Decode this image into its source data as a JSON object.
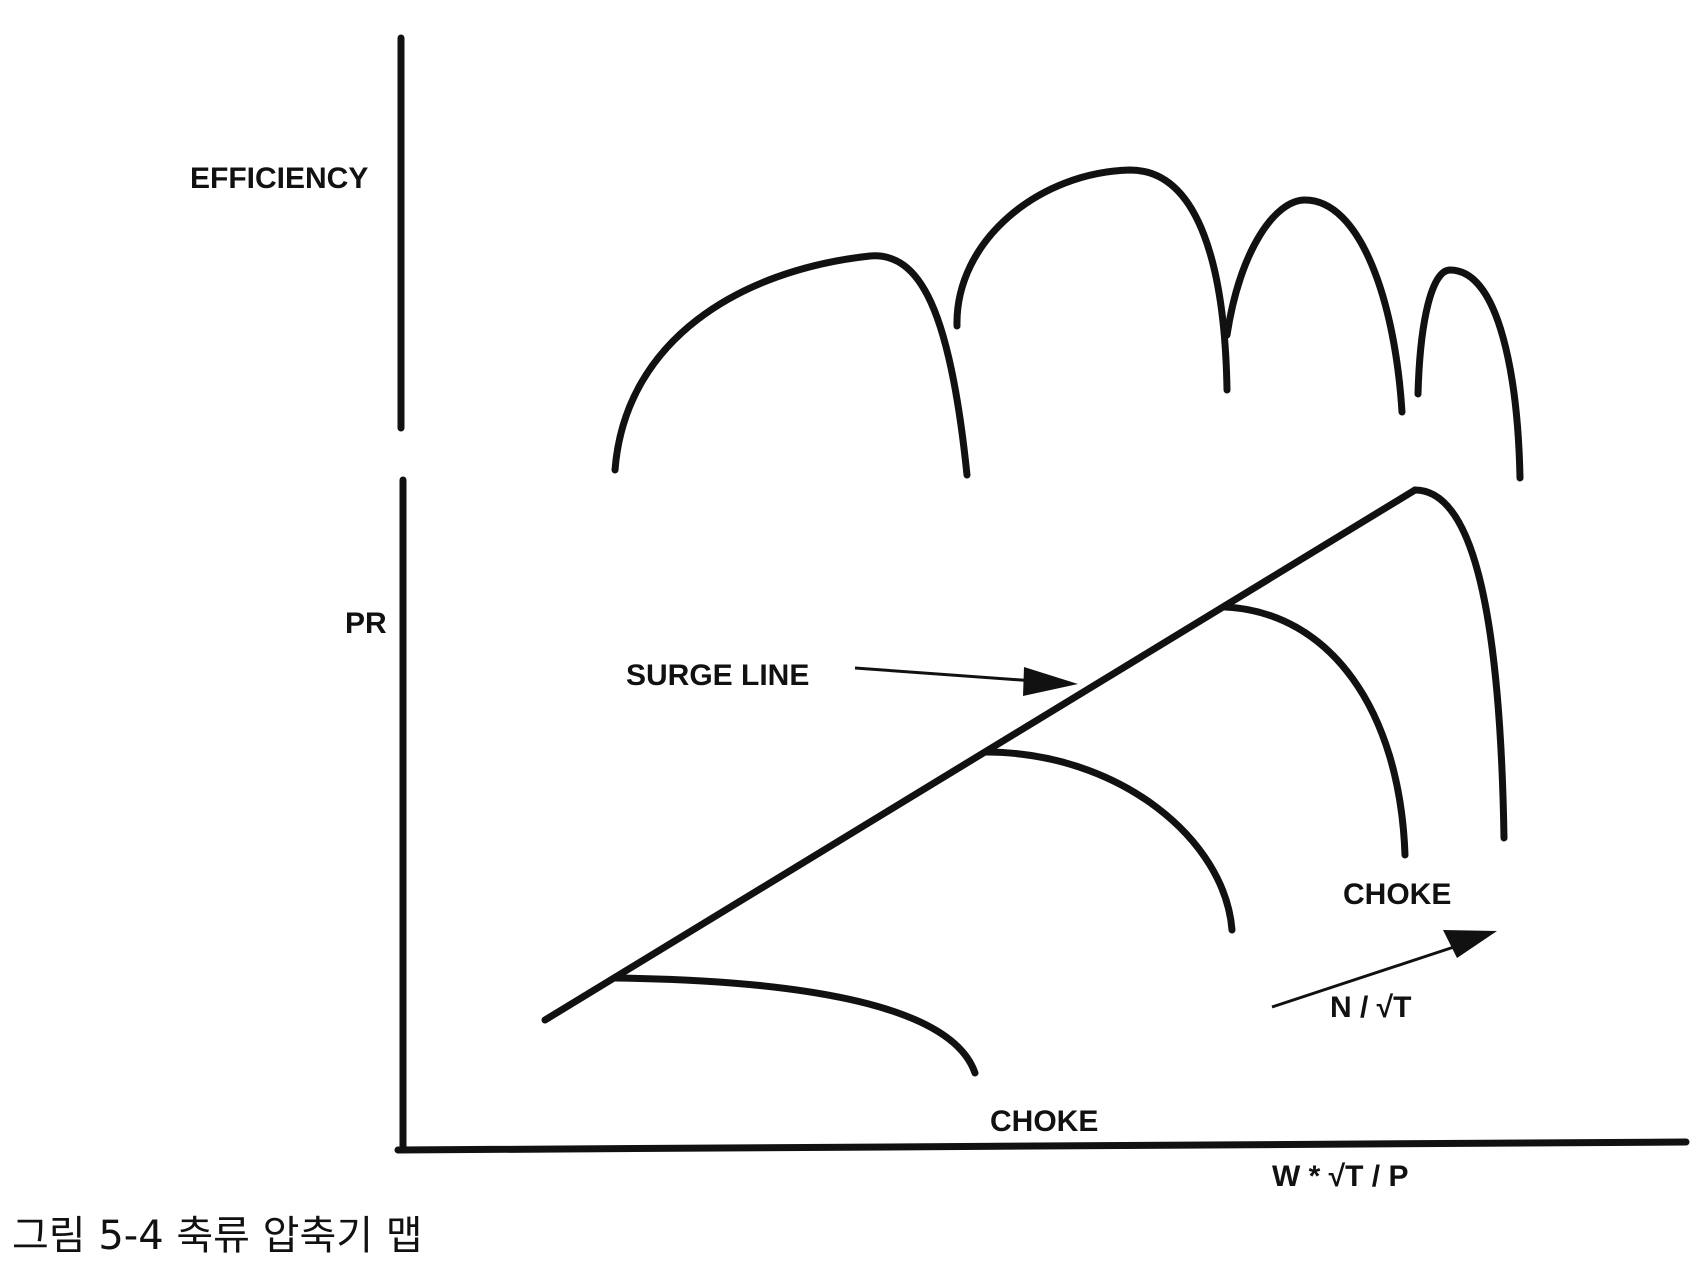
{
  "figure": {
    "labels": {
      "efficiency": "EFFICIENCY",
      "pr": "PR",
      "surge_line": "SURGE LINE",
      "choke_lower": "CHOKE",
      "choke_upper": "CHOKE",
      "speed": "N / √T",
      "flow": "W * √T / P"
    },
    "caption": "그림 5-4 축류 압축기 맵"
  }
}
